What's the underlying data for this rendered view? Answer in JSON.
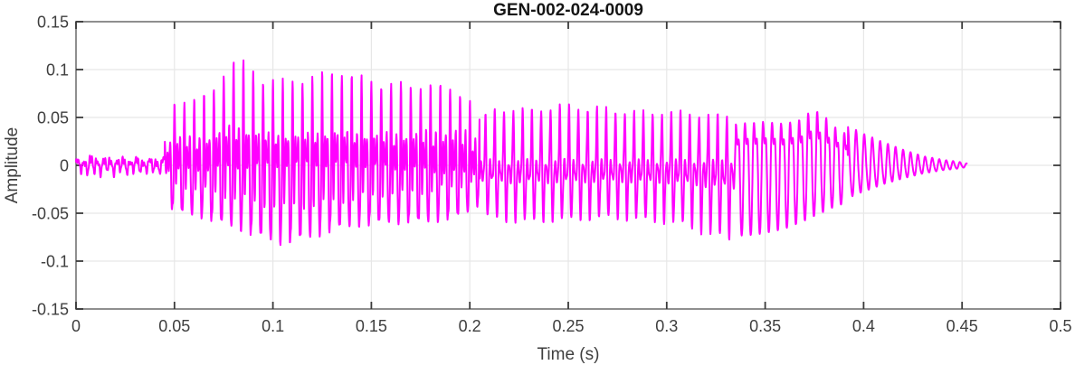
{
  "figure": {
    "background": "#ffffff"
  },
  "chart_data": {
    "type": "line",
    "title": "GEN-002-024-0009",
    "xlabel": "Time (s)",
    "ylabel": "Amplitude",
    "xlim": [
      0,
      0.5
    ],
    "ylim": [
      -0.15,
      0.15
    ],
    "x_ticks": [
      0,
      0.05,
      0.1,
      0.15,
      0.2,
      0.25,
      0.3,
      0.35,
      0.4,
      0.45,
      0.5
    ],
    "x_tick_labels": [
      "0",
      "0.05",
      "0.1",
      "0.15",
      "0.2",
      "0.25",
      "0.3",
      "0.35",
      "0.4",
      "0.45",
      "0.5"
    ],
    "y_ticks": [
      -0.15,
      -0.1,
      -0.05,
      0,
      0.05,
      0.1,
      0.15
    ],
    "y_tick_labels": [
      "-0.15",
      "-0.1",
      "-0.05",
      "0",
      "0.05",
      "0.1",
      "0.15"
    ],
    "grid": true,
    "legend": "none",
    "line_color": "#ff00ff",
    "grid_color": "#e7e7e7",
    "axis_box_color": "#8f8f8f",
    "tick_mark_color": "#3a3a3a",
    "tick_label_color": "#3e3e3e",
    "title_color": "#151515",
    "signal": {
      "description": "speech-like audio waveform, signal spans 0 s to approx 0.452 s, silent after",
      "t_start": 0,
      "t_end": 0.4525,
      "envelope_points": [
        [
          0.0,
          0.008,
          -0.008
        ],
        [
          0.005,
          0.013,
          -0.011
        ],
        [
          0.01,
          0.014,
          -0.012
        ],
        [
          0.015,
          0.011,
          -0.01
        ],
        [
          0.02,
          0.012,
          -0.011
        ],
        [
          0.025,
          0.011,
          -0.01
        ],
        [
          0.03,
          0.012,
          -0.01
        ],
        [
          0.035,
          0.01,
          -0.009
        ],
        [
          0.04,
          0.011,
          -0.01
        ],
        [
          0.044,
          0.01,
          -0.009
        ],
        [
          0.046,
          0.04,
          -0.035
        ],
        [
          0.048,
          0.065,
          -0.06
        ],
        [
          0.052,
          0.072,
          -0.065
        ],
        [
          0.058,
          0.07,
          -0.068
        ],
        [
          0.064,
          0.073,
          -0.072
        ],
        [
          0.07,
          0.082,
          -0.078
        ],
        [
          0.075,
          0.1,
          -0.082
        ],
        [
          0.08,
          0.111,
          -0.086
        ],
        [
          0.085,
          0.108,
          -0.092
        ],
        [
          0.09,
          0.1,
          -0.098
        ],
        [
          0.095,
          0.092,
          -0.103
        ],
        [
          0.1,
          0.09,
          -0.107
        ],
        [
          0.105,
          0.088,
          -0.11
        ],
        [
          0.112,
          0.09,
          -0.108
        ],
        [
          0.12,
          0.094,
          -0.101
        ],
        [
          0.127,
          0.098,
          -0.095
        ],
        [
          0.133,
          0.101,
          -0.09
        ],
        [
          0.14,
          0.096,
          -0.086
        ],
        [
          0.15,
          0.089,
          -0.083
        ],
        [
          0.16,
          0.086,
          -0.08
        ],
        [
          0.17,
          0.085,
          -0.08
        ],
        [
          0.18,
          0.087,
          -0.078
        ],
        [
          0.19,
          0.084,
          -0.074
        ],
        [
          0.197,
          0.078,
          -0.068
        ],
        [
          0.202,
          0.064,
          -0.058
        ],
        [
          0.207,
          0.054,
          -0.052
        ],
        [
          0.212,
          0.061,
          -0.055
        ],
        [
          0.22,
          0.063,
          -0.057
        ],
        [
          0.23,
          0.061,
          -0.058
        ],
        [
          0.24,
          0.064,
          -0.057
        ],
        [
          0.25,
          0.066,
          -0.056
        ],
        [
          0.26,
          0.064,
          -0.055
        ],
        [
          0.27,
          0.062,
          -0.054
        ],
        [
          0.28,
          0.06,
          -0.055
        ],
        [
          0.29,
          0.058,
          -0.057
        ],
        [
          0.3,
          0.06,
          -0.058
        ],
        [
          0.31,
          0.058,
          -0.062
        ],
        [
          0.32,
          0.056,
          -0.07
        ],
        [
          0.33,
          0.055,
          -0.076
        ],
        [
          0.34,
          0.058,
          -0.078
        ],
        [
          0.35,
          0.06,
          -0.075
        ],
        [
          0.36,
          0.057,
          -0.07
        ],
        [
          0.368,
          0.063,
          -0.063
        ],
        [
          0.374,
          0.076,
          -0.057
        ],
        [
          0.379,
          0.072,
          -0.052
        ],
        [
          0.384,
          0.055,
          -0.047
        ],
        [
          0.39,
          0.045,
          -0.042
        ],
        [
          0.4,
          0.034,
          -0.032
        ],
        [
          0.41,
          0.025,
          -0.023
        ],
        [
          0.42,
          0.017,
          -0.016
        ],
        [
          0.43,
          0.01,
          -0.01
        ],
        [
          0.44,
          0.006,
          -0.006
        ],
        [
          0.448,
          0.004,
          -0.004
        ],
        [
          0.4525,
          0.002,
          -0.002
        ]
      ],
      "segments": [
        {
          "name": "quiet-lead-in",
          "t0": 0.0,
          "t1": 0.045,
          "f": 300
        },
        {
          "name": "loud-voiced",
          "t0": 0.045,
          "t1": 0.205,
          "f": 200
        },
        {
          "name": "pulsed-voiced",
          "t0": 0.205,
          "t1": 0.335,
          "f": 212
        },
        {
          "name": "smooth-voiced",
          "t0": 0.335,
          "t1": 0.392,
          "f": 218
        },
        {
          "name": "decay-tail",
          "t0": 0.392,
          "t1": 0.4525,
          "f": 235
        }
      ]
    }
  }
}
